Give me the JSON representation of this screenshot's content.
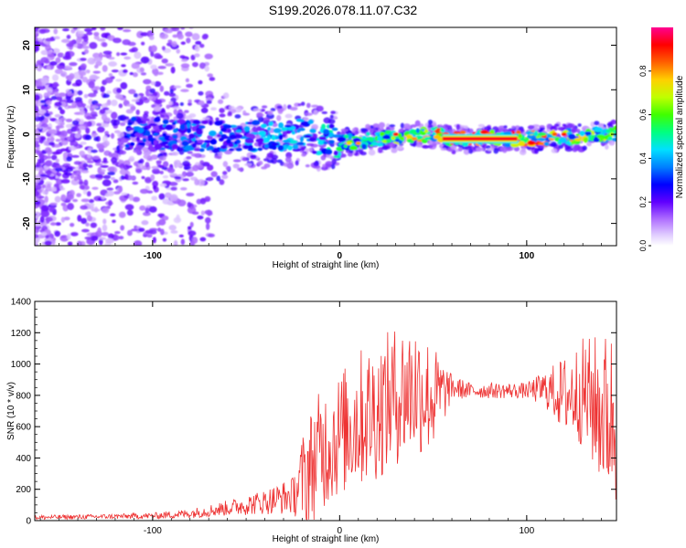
{
  "title": "S199.2026.078.11.07.C32",
  "chart_data": [
    {
      "type": "heatmap",
      "title": "",
      "xlabel": "Height of straight line (km)",
      "ylabel": "Frequency (Hz)",
      "xlim": [
        -163,
        148
      ],
      "ylim": [
        -25,
        24
      ],
      "xticks": [
        -100,
        0,
        100
      ],
      "yticks": [
        -20,
        -10,
        0,
        10,
        20
      ],
      "xtick_labels": [
        "-100",
        "0",
        "100"
      ],
      "ytick_labels": [
        "-20",
        "-10",
        "0",
        "10",
        "20"
      ],
      "colorbar": {
        "label": "Normalized spectral amplitude",
        "range": [
          0,
          1
        ],
        "ticks": [
          0.0,
          0.2,
          0.4,
          0.6,
          0.8
        ],
        "tick_labels": [
          "0.0",
          "0.2",
          "0.4",
          "0.6",
          "0.8"
        ],
        "colors": [
          "#ffffff",
          "#c896ff",
          "#7800ff",
          "#0000ff",
          "#00aaff",
          "#00ff80",
          "#80ff00",
          "#ffff00",
          "#ff8000",
          "#ff0000",
          "#ff00aa"
        ]
      },
      "ridge": {
        "description_points_x": [
          -163,
          -100,
          -50,
          -20,
          0,
          20,
          50,
          60,
          100,
          148
        ],
        "frequency_hz": [
          0,
          0,
          -1,
          0,
          -2,
          -1,
          0,
          -1,
          -1,
          0
        ],
        "peak_amplitude": [
          0.3,
          0.4,
          0.45,
          0.5,
          0.6,
          0.7,
          0.9,
          1.0,
          1.0,
          0.7
        ]
      }
    },
    {
      "type": "line",
      "title": "",
      "xlabel": "Height of straight line (km)",
      "ylabel": "SNR (10 * v/v)",
      "xlim": [
        -163,
        148
      ],
      "ylim": [
        0,
        1400
      ],
      "xticks": [
        -100,
        0,
        100
      ],
      "yticks": [
        0,
        200,
        400,
        600,
        800,
        1000,
        1200,
        1400
      ],
      "xtick_labels": [
        "-100",
        "0",
        "100"
      ],
      "ytick_labels": [
        "0",
        "200",
        "400",
        "600",
        "800",
        "1000",
        "1200",
        "1400"
      ],
      "series_color": "#ee3333",
      "envelope": {
        "x": [
          -163,
          -130,
          -100,
          -80,
          -60,
          -40,
          -25,
          -18,
          -10,
          0,
          10,
          20,
          30,
          40,
          50,
          60,
          70,
          80,
          100,
          110,
          120,
          130,
          140,
          148
        ],
        "mean": [
          20,
          25,
          30,
          45,
          80,
          120,
          160,
          300,
          450,
          550,
          650,
          700,
          800,
          850,
          780,
          850,
          830,
          830,
          830,
          840,
          800,
          820,
          700,
          650
        ],
        "spread": [
          15,
          15,
          20,
          30,
          50,
          80,
          120,
          350,
          400,
          400,
          450,
          450,
          450,
          450,
          350,
          80,
          50,
          50,
          50,
          120,
          250,
          350,
          500,
          600
        ]
      }
    }
  ]
}
